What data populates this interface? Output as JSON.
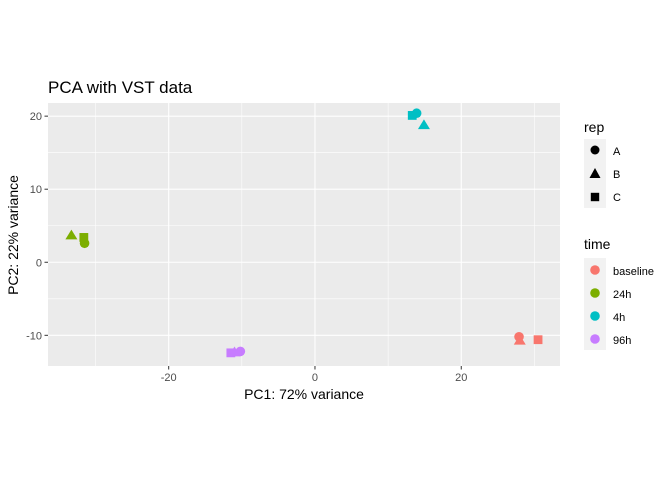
{
  "chart_data": {
    "type": "scatter",
    "title": "PCA with VST data",
    "xlabel": "PC1: 72% variance",
    "ylabel": "PC2: 22% variance",
    "xlim": [
      -36.5,
      33.5
    ],
    "ylim": [
      -14.2,
      21.8
    ],
    "x_ticks": [
      -20,
      0,
      20
    ],
    "y_ticks": [
      -10,
      0,
      10,
      20
    ],
    "grid": true,
    "colors": {
      "baseline": "#F8766D",
      "24h": "#7CAE00",
      "4h": "#00BFC4",
      "96h": "#C77CFF"
    },
    "legends": [
      {
        "title": "rep",
        "position": "right",
        "entries": [
          {
            "label": "A",
            "shape": "circle"
          },
          {
            "label": "B",
            "shape": "triangle"
          },
          {
            "label": "C",
            "shape": "square"
          }
        ]
      },
      {
        "title": "time",
        "position": "right",
        "entries": [
          {
            "label": "baseline",
            "color": "#F8766D"
          },
          {
            "label": "24h",
            "color": "#7CAE00"
          },
          {
            "label": "4h",
            "color": "#00BFC4"
          },
          {
            "label": "96h",
            "color": "#C77CFF"
          }
        ]
      }
    ],
    "points": [
      {
        "x": 13.3,
        "y": 20.1,
        "time": "4h",
        "rep": "C"
      },
      {
        "x": 13.9,
        "y": 20.4,
        "time": "4h",
        "rep": "A"
      },
      {
        "x": 14.9,
        "y": 18.8,
        "time": "4h",
        "rep": "B"
      },
      {
        "x": -33.3,
        "y": 3.7,
        "time": "24h",
        "rep": "B"
      },
      {
        "x": -31.6,
        "y": 3.4,
        "time": "24h",
        "rep": "C"
      },
      {
        "x": -31.5,
        "y": 2.6,
        "time": "24h",
        "rep": "A"
      },
      {
        "x": -11.5,
        "y": -12.4,
        "time": "96h",
        "rep": "C"
      },
      {
        "x": -11.0,
        "y": -12.3,
        "time": "96h",
        "rep": "B"
      },
      {
        "x": -10.2,
        "y": -12.2,
        "time": "96h",
        "rep": "A"
      },
      {
        "x": 27.9,
        "y": -10.2,
        "time": "baseline",
        "rep": "A"
      },
      {
        "x": 28.0,
        "y": -10.7,
        "time": "baseline",
        "rep": "B"
      },
      {
        "x": 30.5,
        "y": -10.6,
        "time": "baseline",
        "rep": "C"
      }
    ]
  }
}
